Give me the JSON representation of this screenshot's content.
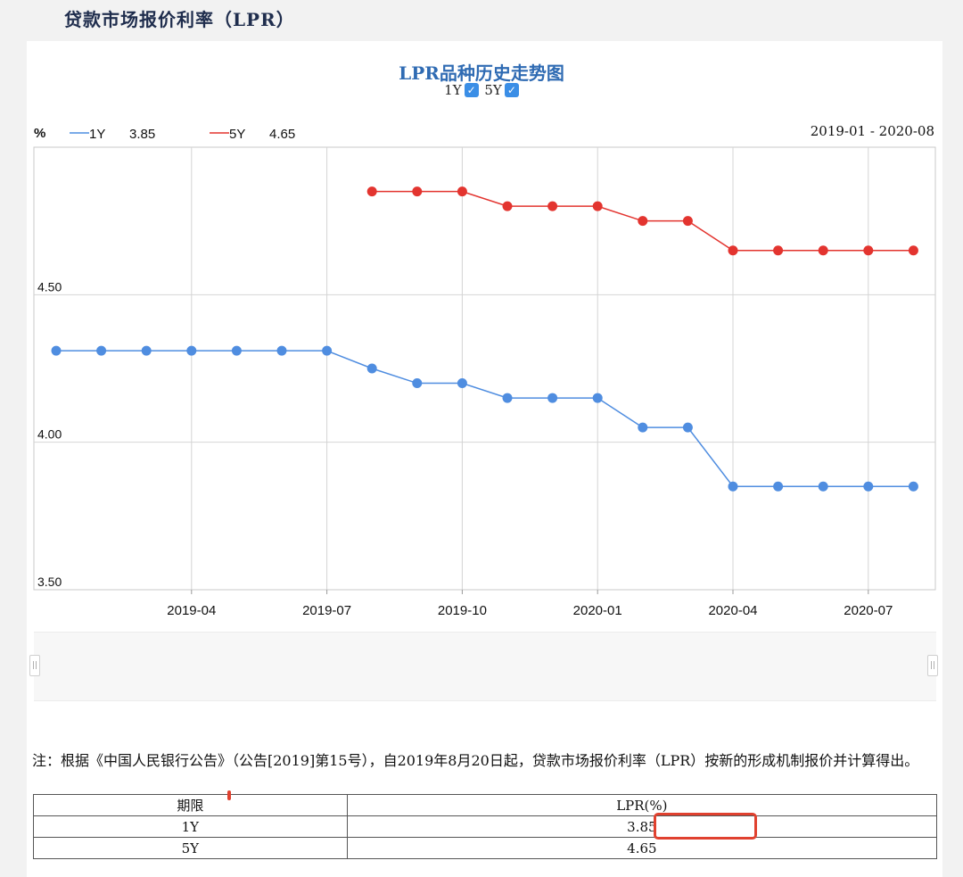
{
  "page": {
    "title": "贷款市场报价利率（LPR）"
  },
  "chart_data": {
    "type": "line",
    "title": "LPR品种历史走势图",
    "unit_label": "%",
    "date_range_label": "2019-01 - 2020-08",
    "toggles": [
      {
        "label": "1Y",
        "checked": true,
        "check_glyph": "✓"
      },
      {
        "label": "5Y",
        "checked": true,
        "check_glyph": "✓"
      }
    ],
    "legend": [
      {
        "name": "1Y",
        "value": "3.85",
        "color": "#4f8de0"
      },
      {
        "name": "5Y",
        "value": "4.65",
        "color": "#e3342f"
      }
    ],
    "x": [
      "2019-01",
      "2019-02",
      "2019-03",
      "2019-04",
      "2019-05",
      "2019-06",
      "2019-07",
      "2019-08",
      "2019-09",
      "2019-10",
      "2019-11",
      "2019-12",
      "2020-01",
      "2020-02",
      "2020-03",
      "2020-04",
      "2020-05",
      "2020-06",
      "2020-07",
      "2020-08"
    ],
    "x_tick_labels": [
      "2019-04",
      "2019-07",
      "2019-10",
      "2020-01",
      "2020-04",
      "2020-07"
    ],
    "y_tick_labels": [
      "4.50",
      "4.00",
      "3.50"
    ],
    "ylim": [
      3.5,
      5.0
    ],
    "grid": true,
    "series": [
      {
        "name": "1Y",
        "color": "#4f8de0",
        "values": [
          4.31,
          4.31,
          4.31,
          4.31,
          4.31,
          4.31,
          4.31,
          4.25,
          4.2,
          4.2,
          4.15,
          4.15,
          4.15,
          4.05,
          4.05,
          3.85,
          3.85,
          3.85,
          3.85,
          3.85
        ]
      },
      {
        "name": "5Y",
        "color": "#e3342f",
        "values": [
          null,
          null,
          null,
          null,
          null,
          null,
          null,
          4.85,
          4.85,
          4.85,
          4.8,
          4.8,
          4.8,
          4.75,
          4.75,
          4.65,
          4.65,
          4.65,
          4.65,
          4.65
        ]
      }
    ]
  },
  "range_selector": {
    "left_handle": "||",
    "right_handle": "||"
  },
  "note": {
    "text": "注：根据《中国人民银行公告》（公告[2019]第15号），自2019年8月20日起，贷款市场报价利率（LPR）按新的形成机制报价并计算得出。"
  },
  "table": {
    "headers": [
      "期限",
      "LPR(%)"
    ],
    "rows": [
      [
        "1Y",
        "3.85"
      ],
      [
        "5Y",
        "4.65"
      ]
    ]
  }
}
